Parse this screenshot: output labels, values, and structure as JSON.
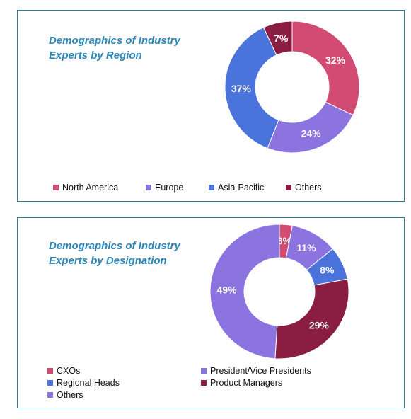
{
  "panels": [
    {
      "title_lines": [
        "Demographics of Industry",
        "Experts by Region"
      ]
    },
    {
      "title_lines": [
        "Demographics of Industry",
        "Experts by Designation"
      ]
    }
  ],
  "chart_data": [
    {
      "type": "pie",
      "donut": true,
      "title": "Demographics of Industry Experts by Region",
      "categories": [
        "North America",
        "Europe",
        "Asia-Pacific",
        "Others"
      ],
      "values": [
        32,
        24,
        37,
        7
      ],
      "labels": [
        "32%",
        "24%",
        "37%",
        "7%"
      ],
      "colors": [
        "#d14b73",
        "#8b74e0",
        "#4a73dc",
        "#8a1e42"
      ],
      "legend_position": "bottom"
    },
    {
      "type": "pie",
      "donut": true,
      "title": "Demographics of Industry Experts by Designation",
      "categories": [
        "CXOs",
        "President/Vice Presidents",
        "Regional Heads",
        "Product Managers",
        "Others"
      ],
      "values": [
        3,
        11,
        8,
        29,
        49
      ],
      "labels": [
        "3%",
        "11%",
        "8%",
        "29%",
        "49%"
      ],
      "colors": [
        "#d14b73",
        "#8b74e0",
        "#4a73dc",
        "#8a1e42",
        "#8b74e0"
      ],
      "legend_position": "bottom"
    }
  ]
}
